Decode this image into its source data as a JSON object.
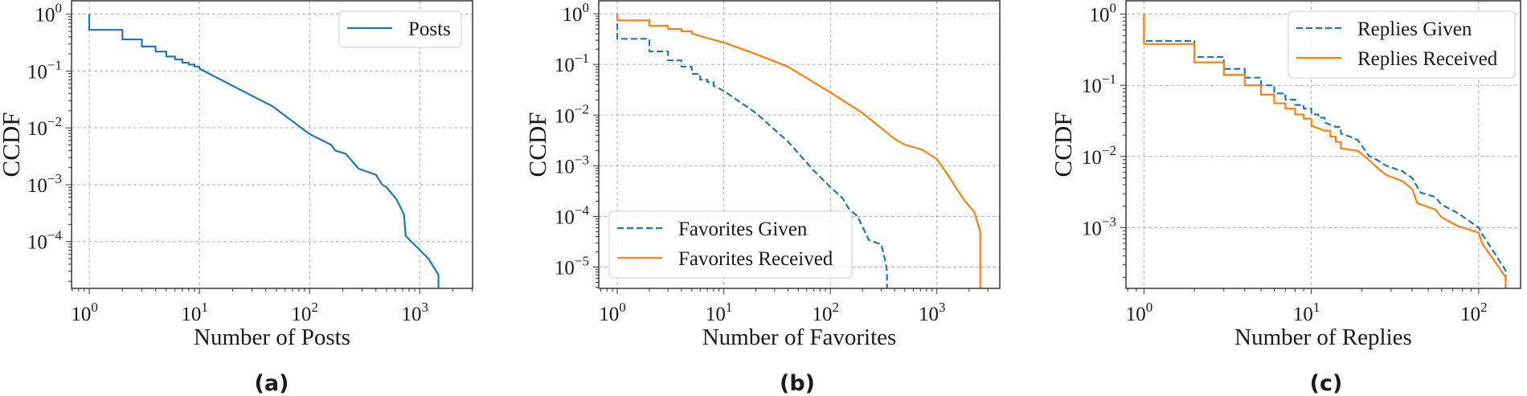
{
  "chart_data": [
    {
      "panel_label": "(a)",
      "type": "line",
      "xscale": "log",
      "yscale": "log",
      "xlabel": "Number of Posts",
      "ylabel": "CCDF",
      "xlim": [
        0.69,
        3020
      ],
      "ylim": [
        1.5e-05,
        1.72
      ],
      "xticks": [
        {
          "v": 1,
          "e": "0"
        },
        {
          "v": 10,
          "e": "1"
        },
        {
          "v": 100,
          "e": "2"
        },
        {
          "v": 1000,
          "e": "3"
        }
      ],
      "yticks": [
        {
          "v": 1,
          "e": "0"
        },
        {
          "v": 0.1,
          "e": "−1"
        },
        {
          "v": 0.01,
          "e": "−2"
        },
        {
          "v": 0.001,
          "e": "−3"
        },
        {
          "v": 0.0001,
          "e": "−4"
        }
      ],
      "grid": true,
      "legend": "top-right",
      "series": [
        {
          "name": "Posts",
          "color": "#1f77b4",
          "dash": false,
          "x": [
            1,
            1,
            2,
            3,
            4,
            5,
            6,
            7,
            8,
            9,
            10,
            20,
            46,
            100,
            158,
            170,
            213,
            280,
            400,
            457,
            500,
            617,
            720,
            745,
            1200,
            1480
          ],
          "y": [
            1,
            0.53,
            0.36,
            0.27,
            0.22,
            0.18,
            0.16,
            0.14,
            0.13,
            0.12,
            0.11,
            0.055,
            0.024,
            0.0078,
            0.005,
            0.004,
            0.0035,
            0.0019,
            0.0015,
            0.001,
            0.0009,
            0.00055,
            0.0003,
            0.000126,
            5e-05,
            2.6e-05
          ]
        }
      ]
    },
    {
      "panel_label": "(b)",
      "type": "line",
      "xscale": "log",
      "yscale": "log",
      "xlabel": "Number of Favorites",
      "ylabel": "CCDF",
      "xlim": [
        0.67,
        3890
      ],
      "ylim": [
        3.8e-06,
        1.8
      ],
      "xticks": [
        {
          "v": 1,
          "e": "0"
        },
        {
          "v": 10,
          "e": "1"
        },
        {
          "v": 100,
          "e": "2"
        },
        {
          "v": 1000,
          "e": "3"
        }
      ],
      "yticks": [
        {
          "v": 1,
          "e": "0"
        },
        {
          "v": 0.1,
          "e": "−1"
        },
        {
          "v": 0.01,
          "e": "−2"
        },
        {
          "v": 0.001,
          "e": "−3"
        },
        {
          "v": 0.0001,
          "e": "−4"
        },
        {
          "v": 1e-05,
          "e": "−5"
        }
      ],
      "grid": true,
      "legend": "lower-left",
      "series": [
        {
          "name": "Favorites Given",
          "color": "#1f77b4",
          "dash": true,
          "x": [
            1,
            1,
            2,
            3,
            4,
            5,
            6,
            7,
            8,
            10,
            20,
            40,
            70,
            100,
            130,
            150,
            180,
            230,
            300,
            330,
            340
          ],
          "y": [
            1,
            0.32,
            0.18,
            0.12,
            0.09,
            0.065,
            0.05,
            0.045,
            0.038,
            0.03,
            0.011,
            0.003,
            0.0008,
            0.00038,
            0.00023,
            0.00014,
            0.0001,
            3.4e-05,
            2.8e-05,
            1.26e-05,
            8e-06
          ]
        },
        {
          "name": "Favorites Received",
          "color": "#ff7f0e",
          "dash": false,
          "x": [
            1,
            1,
            2,
            3,
            4,
            5,
            7,
            10,
            20,
            40,
            100,
            200,
            400,
            500,
            720,
            1000,
            1200,
            1500,
            1800,
            2250,
            2550
          ],
          "y": [
            1,
            0.74,
            0.58,
            0.5,
            0.45,
            0.41,
            0.33,
            0.27,
            0.16,
            0.09,
            0.028,
            0.011,
            0.0034,
            0.0026,
            0.0021,
            0.00135,
            0.00078,
            0.00038,
            0.00021,
            0.00012,
            5e-05
          ]
        }
      ]
    },
    {
      "panel_label": "(c)",
      "type": "line",
      "xscale": "log",
      "yscale": "log",
      "xlabel": "Number of Replies",
      "ylabel": "CCDF",
      "xlim": [
        0.78,
        178
      ],
      "ylim": [
        0.00014,
        1.54
      ],
      "xticks": [
        {
          "v": 1,
          "e": "0"
        },
        {
          "v": 10,
          "e": "1"
        },
        {
          "v": 100,
          "e": "2"
        }
      ],
      "yticks": [
        {
          "v": 1,
          "e": "0"
        },
        {
          "v": 0.1,
          "e": "−1"
        },
        {
          "v": 0.01,
          "e": "−2"
        },
        {
          "v": 0.001,
          "e": "−3"
        }
      ],
      "grid": true,
      "legend": "top-right",
      "series": [
        {
          "name": "Replies Given",
          "color": "#1f77b4",
          "dash": true,
          "x": [
            1,
            1,
            2,
            3,
            4,
            5,
            6,
            7,
            8,
            9,
            10,
            11,
            12,
            14,
            15,
            17,
            19,
            22,
            25,
            28,
            35,
            40,
            45,
            55,
            60,
            75,
            100,
            105,
            145
          ],
          "y": [
            1,
            0.42,
            0.25,
            0.17,
            0.128,
            0.1,
            0.077,
            0.063,
            0.053,
            0.047,
            0.039,
            0.035,
            0.03,
            0.026,
            0.021,
            0.019,
            0.017,
            0.0103,
            0.0088,
            0.0074,
            0.0062,
            0.005,
            0.0031,
            0.0027,
            0.0021,
            0.0016,
            0.001,
            0.00081,
            0.00025
          ]
        },
        {
          "name": "Replies Received",
          "color": "#ff7f0e",
          "dash": false,
          "x": [
            1,
            1,
            2,
            3,
            4,
            5,
            6,
            7,
            8,
            9,
            10,
            12,
            13,
            14,
            15,
            19,
            22,
            25,
            28,
            35,
            40,
            43,
            55,
            60,
            75,
            100,
            105,
            145
          ],
          "y": [
            1,
            0.38,
            0.21,
            0.14,
            0.1,
            0.074,
            0.056,
            0.047,
            0.039,
            0.034,
            0.027,
            0.023,
            0.019,
            0.016,
            0.013,
            0.012,
            0.009,
            0.0068,
            0.0055,
            0.0045,
            0.0035,
            0.0022,
            0.0018,
            0.0014,
            0.00105,
            0.00085,
            0.0006,
            0.0002
          ]
        }
      ]
    }
  ]
}
